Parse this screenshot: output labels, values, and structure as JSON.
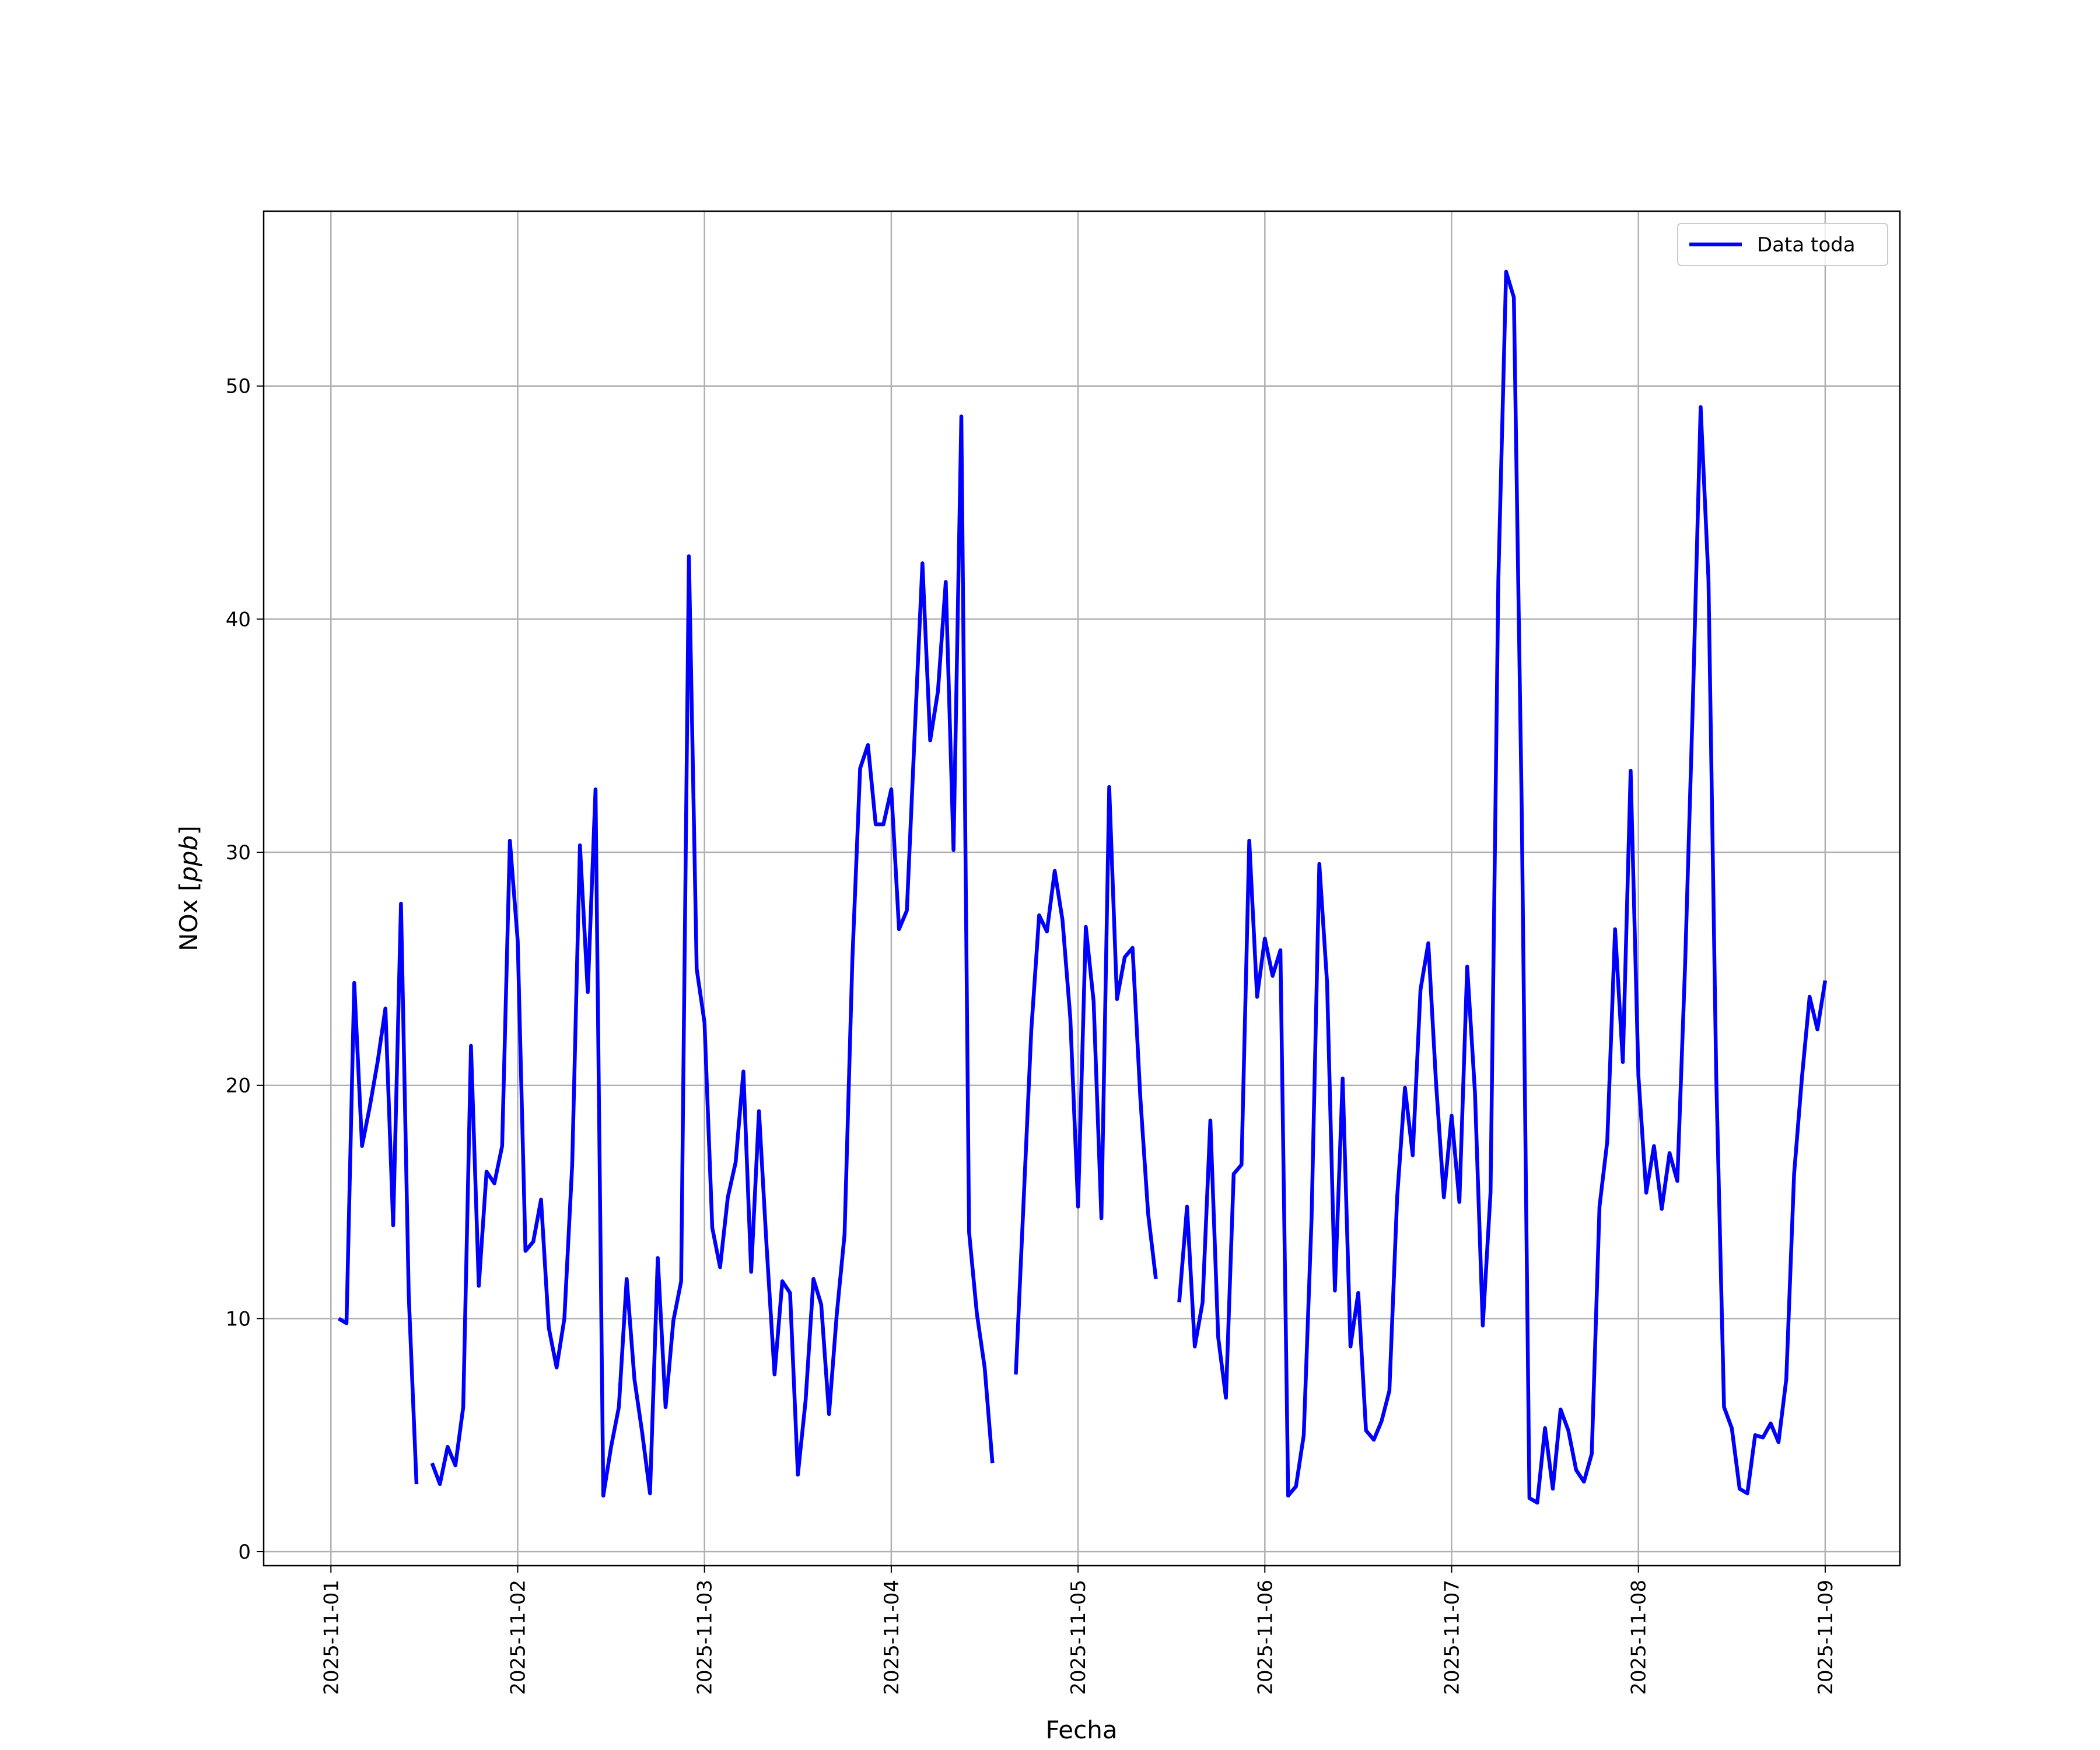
{
  "chart_data": {
    "type": "line",
    "title": "",
    "xlabel": "Fecha",
    "ylabel": "NOx [ppb]",
    "ylabel_parts": {
      "base": "NOx [",
      "unit": "ppb",
      "close": "]"
    },
    "x_start": "2025-11-01T01:00",
    "step_hours": 1,
    "xlim_days": [
      -0.36,
      8.4
    ],
    "ylim": [
      -0.6,
      57.5
    ],
    "grid": true,
    "legend_placement": "top-right",
    "x_ticks": [
      "2025-11-01",
      "2025-11-02",
      "2025-11-03",
      "2025-11-04",
      "2025-11-05",
      "2025-11-06",
      "2025-11-07",
      "2025-11-08",
      "2025-11-09"
    ],
    "y_ticks": [
      "0",
      "10",
      "20",
      "30",
      "40",
      "50"
    ],
    "y_tick_values": [
      0,
      10,
      20,
      30,
      40,
      50
    ],
    "color": "#0000ff",
    "series": [
      {
        "name": "Data toda",
        "values": [
          10.0,
          9.8,
          24.4,
          17.4,
          19.1,
          21.0,
          23.3,
          14.0,
          27.8,
          11.0,
          2.9,
          null,
          3.8,
          2.9,
          4.5,
          3.7,
          6.2,
          21.7,
          11.4,
          16.3,
          15.8,
          17.4,
          30.5,
          26.2,
          12.9,
          13.3,
          15.1,
          9.6,
          7.9,
          10.0,
          16.6,
          30.3,
          24.0,
          32.7,
          2.4,
          4.5,
          6.2,
          11.7,
          7.4,
          5.1,
          2.5,
          12.6,
          6.2,
          9.9,
          11.6,
          42.7,
          25.0,
          22.7,
          13.9,
          12.2,
          15.2,
          16.7,
          20.6,
          12.0,
          18.9,
          13.0,
          7.6,
          11.6,
          11.1,
          3.3,
          6.5,
          11.7,
          10.6,
          5.9,
          10.2,
          13.6,
          25.4,
          33.6,
          34.6,
          31.2,
          31.2,
          32.7,
          26.7,
          27.5,
          35.0,
          42.4,
          34.8,
          36.9,
          41.6,
          30.1,
          48.7,
          13.7,
          10.2,
          7.9,
          3.8,
          null,
          null,
          7.6,
          15.0,
          22.4,
          27.3,
          26.6,
          29.2,
          27.1,
          22.9,
          14.8,
          26.8,
          23.6,
          14.3,
          32.8,
          23.7,
          25.5,
          25.9,
          19.5,
          14.5,
          11.7,
          null,
          null,
          10.7,
          14.8,
          8.8,
          10.7,
          18.5,
          9.2,
          6.6,
          16.2,
          16.6,
          30.5,
          23.8,
          26.3,
          24.7,
          25.8,
          2.4,
          2.8,
          5.0,
          14.3,
          29.5,
          24.4,
          11.2,
          20.3,
          8.8,
          11.1,
          5.2,
          4.8,
          5.6,
          6.9,
          15.2,
          19.9,
          17.0,
          24.1,
          26.1,
          20.1,
          15.2,
          18.7,
          15.0,
          25.1,
          19.7,
          9.7,
          15.4,
          41.7,
          54.9,
          53.8,
          32.0,
          2.3,
          2.1,
          5.3,
          2.7,
          6.1,
          5.2,
          3.5,
          3.0,
          4.2,
          14.8,
          17.6,
          26.7,
          21.0,
          33.5,
          20.4,
          15.4,
          17.4,
          14.7,
          17.1,
          15.9,
          25.2,
          36.5,
          49.1,
          41.7,
          20.4,
          6.2,
          5.3,
          2.7,
          2.5,
          5.0,
          4.9,
          5.5,
          4.7,
          7.4,
          16.2,
          20.3,
          23.8,
          22.4,
          24.5
        ]
      }
    ]
  }
}
